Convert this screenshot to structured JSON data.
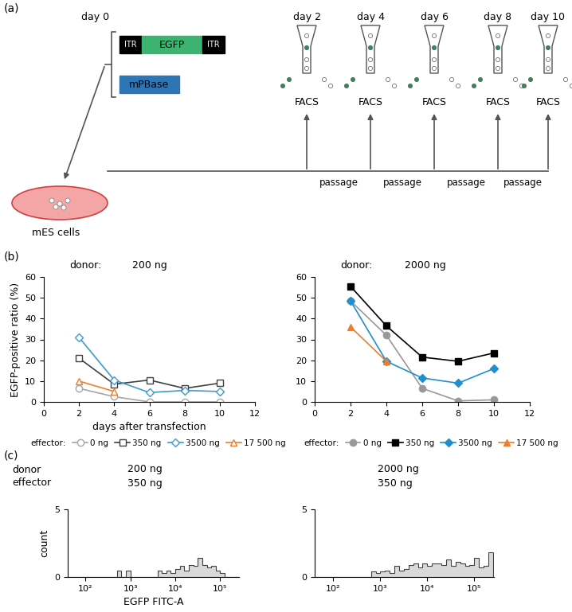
{
  "panel_labels": [
    "(a)",
    "(b)",
    "(c)"
  ],
  "diagram": {
    "day0": "day 0",
    "days": [
      "day 2",
      "day 4",
      "day 6",
      "day 8",
      "day 10"
    ],
    "donor_plasmid": {
      "left": "ITR",
      "insert": "EGFP",
      "right": "ITR"
    },
    "effector_plasmid": "mPBase",
    "cells": "mES cells",
    "sorter": "FACS",
    "step": "passage"
  },
  "chart_data": [
    {
      "type": "line",
      "title": "donor:",
      "subtitle": "200 ng",
      "y_label": "EGFP-positive ratio (%)",
      "x_label": "days after transfection",
      "x": [
        2,
        4,
        6,
        8,
        10
      ],
      "xlim": [
        0,
        12
      ],
      "xticks": [
        0,
        2,
        4,
        6,
        8,
        10,
        12
      ],
      "ylim": [
        0,
        60
      ],
      "yticks": [
        0,
        10,
        20,
        30,
        40,
        50,
        60
      ],
      "legend_title": "effector:",
      "series": [
        {
          "name": "0 ng",
          "color": "#a6a6a6",
          "marker": "open-circle",
          "values": [
            6.5,
            2.5,
            0,
            0,
            0
          ]
        },
        {
          "name": "350 ng",
          "color": "#404040",
          "marker": "open-square",
          "values": [
            21,
            8.5,
            10.5,
            6.5,
            9
          ]
        },
        {
          "name": "3500 ng",
          "color": "#3d9ad1",
          "marker": "open-diamond",
          "values": [
            31,
            10.5,
            4.5,
            5.5,
            5
          ]
        },
        {
          "name": "17 500 ng",
          "color": "#ed7d31",
          "marker": "open-triangle",
          "values": [
            10,
            5,
            null,
            null,
            null
          ]
        }
      ]
    },
    {
      "type": "line",
      "title": "donor:",
      "subtitle": "2000 ng",
      "x": [
        2,
        4,
        6,
        8,
        10
      ],
      "xlim": [
        0,
        12
      ],
      "xticks": [
        0,
        2,
        4,
        6,
        8,
        10,
        12
      ],
      "ylim": [
        0,
        60
      ],
      "yticks": [
        0,
        10,
        20,
        30,
        40,
        50,
        60
      ],
      "legend_title": "effector:",
      "series": [
        {
          "name": "0 ng",
          "color": "#999999",
          "marker": "circle",
          "values": [
            48.5,
            32,
            6.5,
            0.5,
            1
          ]
        },
        {
          "name": "350 ng",
          "color": "#000000",
          "marker": "square",
          "values": [
            55.5,
            36.5,
            21.5,
            19.5,
            23.5
          ]
        },
        {
          "name": "3500 ng",
          "color": "#1f8fd0",
          "marker": "diamond",
          "values": [
            48.5,
            19.5,
            11.5,
            9,
            16
          ]
        },
        {
          "name": "17 500 ng",
          "color": "#ed7d31",
          "marker": "triangle",
          "values": [
            36,
            19.5,
            null,
            null,
            null
          ]
        }
      ]
    },
    {
      "type": "histogram",
      "row_labels": [
        "donor",
        "effector"
      ],
      "row_values": [
        "200 ng",
        "350 ng"
      ],
      "y_label": "count",
      "x_label": "EGFP FITC-A",
      "log": "x",
      "color": "#404040",
      "xlim": [
        40,
        262144
      ],
      "xticks": [
        {
          "value": 100,
          "label": "10²"
        },
        {
          "value": 1000,
          "label": "10³"
        },
        {
          "value": 10000,
          "label": "10⁴"
        },
        {
          "value": 100000,
          "label": "10⁵"
        }
      ],
      "ylim": [
        0,
        5
      ],
      "yticks": [
        0,
        5
      ],
      "bins": [
        39.8,
        50.1,
        63.1,
        79.4,
        100,
        125.9,
        158.5,
        199.5,
        251.2,
        316.2,
        398.1,
        501.2,
        631,
        794.3,
        1000,
        1258.9,
        1584.9,
        1995.3,
        2511.9,
        3162.3,
        3981.1,
        5011.9,
        6309.6,
        7943.3,
        10000,
        12589,
        15849,
        19953,
        25119,
        31623,
        39811,
        50119,
        63096,
        79433,
        100000,
        125893,
        158489,
        199526,
        251189
      ],
      "counts": [
        0,
        0,
        0,
        0,
        0,
        0,
        0,
        0,
        0,
        0,
        0,
        0.5,
        0,
        0.5,
        0,
        0,
        0,
        0,
        0,
        0,
        0.5,
        0.3,
        0.5,
        0.3,
        0.6,
        0.8,
        0.5,
        0.9,
        0.8,
        1.4,
        0.9,
        0.7,
        0.8,
        0.5,
        0.3,
        0,
        0,
        0
      ]
    },
    {
      "type": "histogram",
      "row_values": [
        "2000 ng",
        "350 ng"
      ],
      "log": "x",
      "color": "#404040",
      "xlim": [
        40,
        262144
      ],
      "xticks": [
        {
          "value": 100,
          "label": "10²"
        },
        {
          "value": 1000,
          "label": "10³"
        },
        {
          "value": 10000,
          "label": "10⁴"
        },
        {
          "value": 100000,
          "label": "10⁵"
        }
      ],
      "ylim": [
        0,
        5
      ],
      "yticks": [
        0,
        5
      ],
      "bins": [
        39.8,
        50.1,
        63.1,
        79.4,
        100,
        125.9,
        158.5,
        199.5,
        251.2,
        316.2,
        398.1,
        501.2,
        631,
        794.3,
        1000,
        1258.9,
        1584.9,
        1995.3,
        2511.9,
        3162.3,
        3981.1,
        5011.9,
        6309.6,
        7943.3,
        10000,
        12589,
        15849,
        19953,
        25119,
        31623,
        39811,
        50119,
        63096,
        79433,
        100000,
        125893,
        158489,
        199526,
        251189
      ],
      "counts": [
        0,
        0,
        0,
        0,
        0,
        0,
        0,
        0,
        0,
        0,
        0,
        0,
        0.4,
        0.3,
        0.4,
        0.5,
        0.3,
        0.8,
        0.5,
        0.6,
        0.9,
        1.0,
        0.7,
        1.0,
        0.8,
        1.0,
        1.0,
        0.9,
        1.3,
        0.8,
        1.1,
        1.0,
        0.8,
        0.9,
        1.4,
        0.7,
        0.8,
        1.8
      ]
    }
  ]
}
